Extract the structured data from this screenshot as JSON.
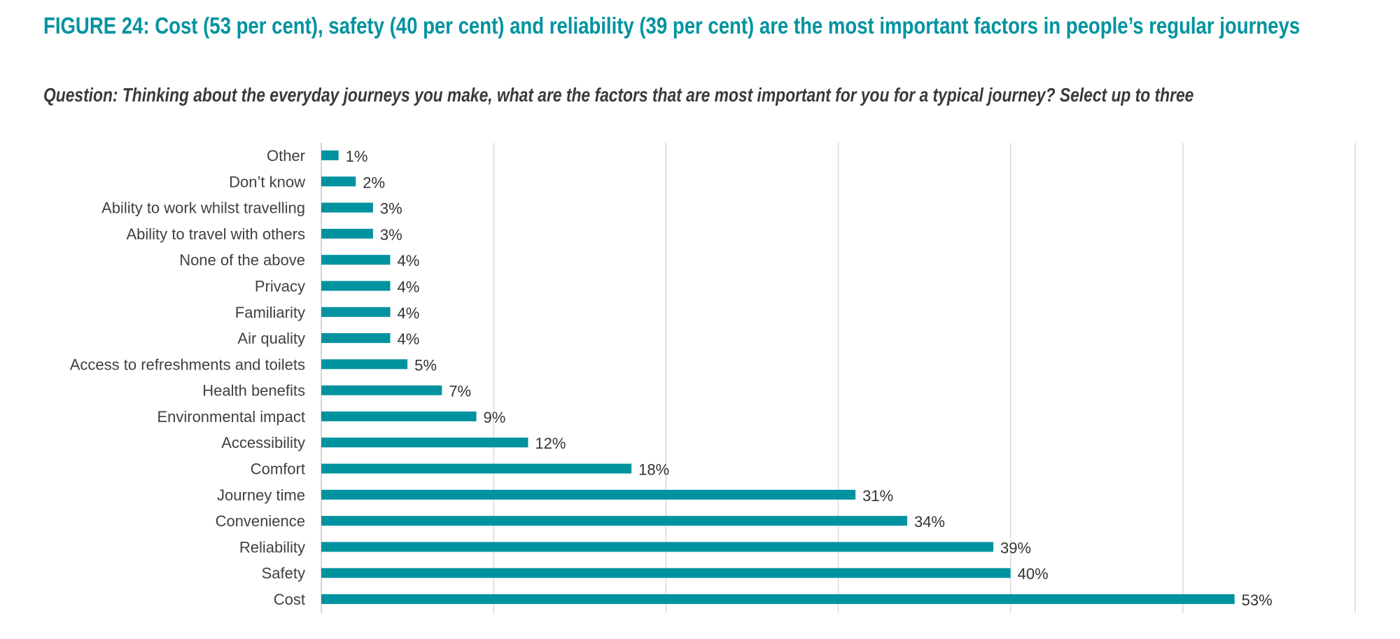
{
  "chart_data": {
    "type": "bar",
    "orientation": "horizontal",
    "title": "FIGURE 24: Cost (53 per cent), safety (40 per cent) and reliability (39 per cent) are the most important factors in people’s regular journeys",
    "subtitle": "Question: Thinking about the everyday journeys you make, what are the factors that are most important for you for a typical journey? Select up to three",
    "categories": [
      "Other",
      "Don’t know",
      "Ability to work whilst travelling",
      "Ability to travel with others",
      "None of the above",
      "Privacy",
      "Familiarity",
      "Air quality",
      "Access to refreshments and toilets",
      "Health benefits",
      "Environmental impact",
      "Accessibility",
      "Comfort",
      "Journey time",
      "Convenience",
      "Reliability",
      "Safety",
      "Cost"
    ],
    "values": [
      1,
      2,
      3,
      3,
      4,
      4,
      4,
      4,
      5,
      7,
      9,
      12,
      18,
      31,
      34,
      39,
      40,
      53
    ],
    "value_labels": [
      "1%",
      "2%",
      "3%",
      "3%",
      "4%",
      "4%",
      "4%",
      "4%",
      "5%",
      "7%",
      "9%",
      "12%",
      "18%",
      "31%",
      "34%",
      "39%",
      "40%",
      "53%"
    ],
    "xlim": [
      0,
      60
    ],
    "grid_step": 10,
    "grid": true,
    "xlabel": "",
    "ylabel": "",
    "bar_color": "#00939f",
    "title_color": "#00939f"
  }
}
